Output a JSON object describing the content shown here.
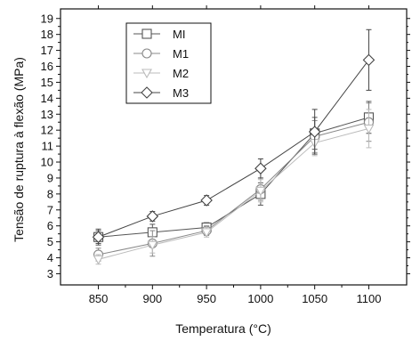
{
  "chart_data": {
    "type": "line",
    "xlabel": "Temperatura (°C)",
    "ylabel": "Tensão de ruptura à flexão (MPa)",
    "x": [
      850,
      900,
      950,
      1000,
      1050,
      1100
    ],
    "xlim": [
      815,
      1135
    ],
    "ylim": [
      2.3,
      19.6
    ],
    "xticks": [
      850,
      900,
      950,
      1000,
      1050,
      1100
    ],
    "yticks": [
      3,
      4,
      5,
      6,
      7,
      8,
      9,
      10,
      11,
      12,
      13,
      14,
      15,
      16,
      17,
      18,
      19
    ],
    "legend_position": "top-left",
    "grid": false,
    "series": [
      {
        "name": "MI",
        "marker": "square",
        "color": "#555555",
        "values": [
          5.3,
          5.6,
          5.9,
          8.0,
          11.8,
          12.8
        ],
        "errors": [
          0.5,
          0.5,
          0.3,
          0.7,
          1.0,
          1.0
        ]
      },
      {
        "name": "M1",
        "marker": "circle",
        "color": "#888888",
        "values": [
          4.2,
          4.9,
          5.7,
          8.3,
          11.6,
          12.5
        ],
        "errors": [
          0.4,
          0.8,
          0.3,
          0.7,
          1.0,
          1.2
        ]
      },
      {
        "name": "M2",
        "marker": "triangle-down",
        "color": "#bbbbbb",
        "values": [
          3.9,
          4.8,
          5.6,
          8.2,
          11.2,
          12.1
        ],
        "errors": [
          0.3,
          0.5,
          0.3,
          0.7,
          0.8,
          1.2
        ]
      },
      {
        "name": "M3",
        "marker": "diamond",
        "color": "#444444",
        "values": [
          5.3,
          6.6,
          7.6,
          9.6,
          11.9,
          16.4
        ],
        "errors": [
          0.4,
          0.3,
          0.3,
          0.6,
          1.4,
          1.9
        ]
      }
    ]
  }
}
